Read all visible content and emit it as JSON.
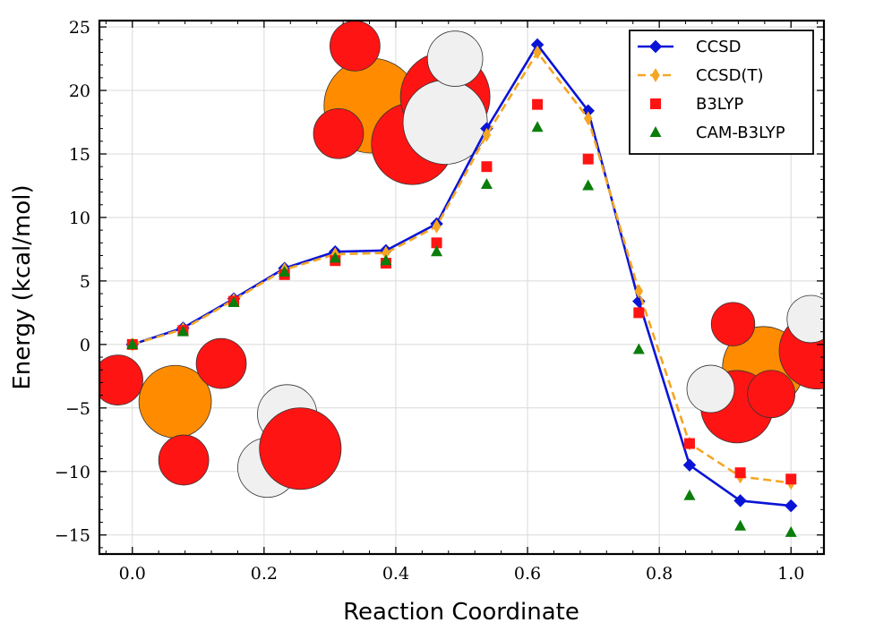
{
  "chart_data": {
    "type": "line",
    "xlabel": "Reaction Coordinate",
    "ylabel": "Energy (kcal/mol)",
    "xlim": [
      -0.05,
      1.05
    ],
    "ylim": [
      -16.5,
      25.5
    ],
    "xticks": [
      0.0,
      0.2,
      0.4,
      0.6,
      0.8,
      1.0
    ],
    "xtick_labels": [
      "0.0",
      "0.2",
      "0.4",
      "0.6",
      "0.8",
      "1.0"
    ],
    "yticks": [
      -15,
      -10,
      -5,
      0,
      5,
      10,
      15,
      20,
      25
    ],
    "ytick_labels": [
      "−15",
      "−10",
      "−5",
      "0",
      "5",
      "10",
      "15",
      "20",
      "25"
    ],
    "grid": true,
    "legend_position": "top-right",
    "x": [
      0.0,
      0.077,
      0.154,
      0.231,
      0.308,
      0.385,
      0.462,
      0.538,
      0.615,
      0.692,
      0.769,
      0.846,
      0.923,
      1.0
    ],
    "series": [
      {
        "name": "CCSD",
        "style": "solid-line-diamond",
        "color": "#0a14d6",
        "values": [
          0.0,
          1.3,
          3.6,
          6.0,
          7.3,
          7.4,
          9.5,
          17.0,
          23.6,
          18.4,
          3.4,
          -9.5,
          -12.3,
          -12.7
        ]
      },
      {
        "name": "CCSD(T)",
        "style": "dashed-line-thin-diamond",
        "color": "#f5a623",
        "values": [
          0.0,
          1.2,
          3.5,
          5.9,
          7.1,
          7.2,
          9.3,
          16.5,
          23.0,
          17.8,
          4.2,
          -7.8,
          -10.4,
          -10.9
        ]
      },
      {
        "name": "B3LYP",
        "style": "square",
        "color": "#ff1414",
        "values": [
          0.0,
          1.1,
          3.4,
          5.5,
          6.6,
          6.4,
          8.0,
          14.0,
          18.9,
          14.6,
          2.5,
          -7.8,
          -10.1,
          -10.6
        ]
      },
      {
        "name": "CAM-B3LYP",
        "style": "triangle",
        "color": "#0b7d0b",
        "values": [
          0.0,
          1.0,
          3.3,
          5.7,
          6.8,
          6.6,
          7.3,
          12.6,
          17.1,
          12.5,
          -0.4,
          -11.9,
          -14.3,
          -14.8
        ]
      }
    ]
  },
  "molecules": [
    {
      "name": "reactant-molecule",
      "atoms": [
        {
          "x": 0.065,
          "y": -4.5,
          "r": 0.055,
          "color": "#ff8c00"
        },
        {
          "x": -0.022,
          "y": -2.8,
          "r": 0.038,
          "color": "#ff1414"
        },
        {
          "x": 0.135,
          "y": -1.5,
          "r": 0.038,
          "color": "#ff1414"
        },
        {
          "x": 0.078,
          "y": -9.1,
          "r": 0.038,
          "color": "#ff1414"
        },
        {
          "x": 0.235,
          "y": -5.5,
          "r": 0.045,
          "color": "#f0f0f0"
        },
        {
          "x": 0.205,
          "y": -9.7,
          "r": 0.045,
          "color": "#f0f0f0"
        },
        {
          "x": 0.255,
          "y": -8.2,
          "r": 0.062,
          "color": "#ff1414"
        }
      ],
      "bonds": [
        [
          0,
          1
        ],
        [
          0,
          2
        ],
        [
          0,
          3
        ]
      ]
    },
    {
      "name": "transition-state-molecule",
      "atoms": [
        {
          "x": 0.363,
          "y": 18.8,
          "r": 0.072,
          "color": "#ff8c00"
        },
        {
          "x": 0.338,
          "y": 23.5,
          "r": 0.038,
          "color": "#ff1414"
        },
        {
          "x": 0.313,
          "y": 16.6,
          "r": 0.038,
          "color": "#ff1414"
        },
        {
          "x": 0.425,
          "y": 15.8,
          "r": 0.062,
          "color": "#ff1414"
        },
        {
          "x": 0.475,
          "y": 19.5,
          "r": 0.068,
          "color": "#ff1414"
        },
        {
          "x": 0.475,
          "y": 17.5,
          "r": 0.064,
          "color": "#f0f0f0"
        },
        {
          "x": 0.49,
          "y": 22.5,
          "r": 0.042,
          "color": "#f0f0f0"
        }
      ],
      "bonds": [
        [
          0,
          1
        ],
        [
          0,
          2
        ],
        [
          0,
          3
        ],
        [
          0,
          4
        ]
      ]
    },
    {
      "name": "product-molecule",
      "atoms": [
        {
          "x": 0.958,
          "y": -1.8,
          "r": 0.062,
          "color": "#ff8c00"
        },
        {
          "x": 0.912,
          "y": 1.6,
          "r": 0.033,
          "color": "#ff1414"
        },
        {
          "x": 0.918,
          "y": -4.9,
          "r": 0.055,
          "color": "#ff1414"
        },
        {
          "x": 0.97,
          "y": -3.9,
          "r": 0.036,
          "color": "#ff1414"
        },
        {
          "x": 1.04,
          "y": -0.5,
          "r": 0.058,
          "color": "#ff1414"
        },
        {
          "x": 1.03,
          "y": 2.0,
          "r": 0.036,
          "color": "#f0f0f0"
        },
        {
          "x": 0.878,
          "y": -3.5,
          "r": 0.036,
          "color": "#f0f0f0"
        }
      ],
      "bonds": [
        [
          0,
          1
        ],
        [
          0,
          2
        ],
        [
          0,
          4
        ]
      ]
    }
  ]
}
